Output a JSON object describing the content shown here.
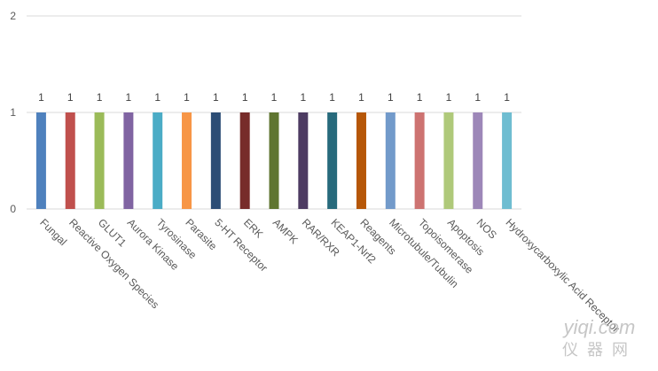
{
  "chart_data": {
    "type": "bar",
    "categories": [
      "Fungal",
      "Reactive Oxygen Species",
      "GLUT1",
      "Aurora Kinase",
      "Tyrosinase",
      "Parasite",
      "5-HT Receptor",
      "ERK",
      "AMPK",
      "RAR/RXR",
      "KEAP1-Nrf2",
      "Reagents",
      "Microtubule/Tubulin",
      "Topoisomerase",
      "Apoptosis",
      "NOS",
      "Hydroxycarboxylic Acid Receptor"
    ],
    "values": [
      1,
      1,
      1,
      1,
      1,
      1,
      1,
      1,
      1,
      1,
      1,
      1,
      1,
      1,
      1,
      1,
      1
    ],
    "colors": [
      "#4f81bd",
      "#c0504d",
      "#9bbb59",
      "#8064a2",
      "#4bacc6",
      "#f79646",
      "#2c4d75",
      "#772c2a",
      "#5f7530",
      "#4d3b62",
      "#276a7c",
      "#b65708",
      "#729aca",
      "#cd7371",
      "#afc97a",
      "#9d87b8",
      "#6fbdd1"
    ],
    "yticks": [
      "0",
      "1",
      "2"
    ],
    "ylim": [
      0,
      2
    ],
    "grid": true,
    "data_labels": true
  },
  "watermark": {
    "line1": "yiqi.com",
    "line2": "仪器网"
  }
}
